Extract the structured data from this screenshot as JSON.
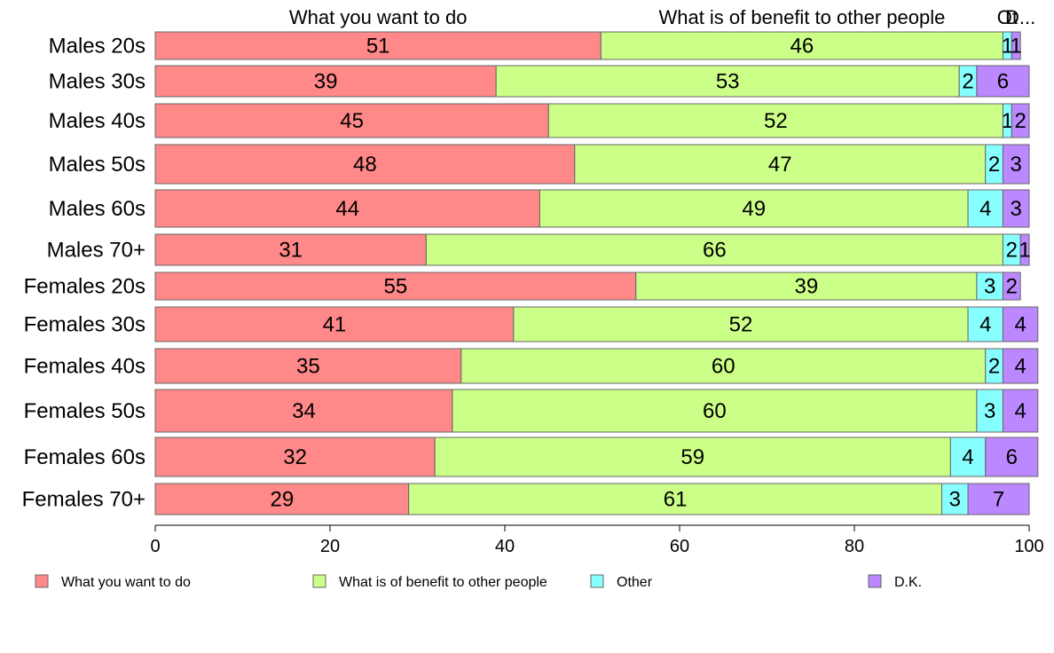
{
  "chart_data": {
    "type": "bar",
    "orientation": "horizontal",
    "stacked": true,
    "categories": [
      "Males 20s",
      "Males 30s",
      "Males 40s",
      "Males 50s",
      "Males 60s",
      "Males 70+",
      "Females 20s",
      "Females 30s",
      "Females 40s",
      "Females 50s",
      "Females 60s",
      "Females 70+"
    ],
    "series": [
      {
        "name": "What you want to do",
        "color": "#FF8888",
        "values": [
          51,
          39,
          45,
          48,
          44,
          31,
          55,
          41,
          35,
          34,
          32,
          29
        ]
      },
      {
        "name": "What is of benefit to other people",
        "color": "#CCFF88",
        "values": [
          46,
          53,
          52,
          47,
          49,
          66,
          39,
          52,
          60,
          60,
          59,
          61
        ]
      },
      {
        "name": "Other",
        "color": "#88FFFF",
        "values": [
          1,
          2,
          1,
          2,
          4,
          2,
          3,
          4,
          2,
          3,
          4,
          3
        ]
      },
      {
        "name": "D.K.",
        "color": "#BB88FF",
        "values": [
          1,
          6,
          2,
          3,
          3,
          1,
          2,
          4,
          4,
          4,
          6,
          7
        ]
      }
    ],
    "top_labels": [
      "What you want to do",
      "What is of benefit to other people",
      "Ot",
      "D..."
    ],
    "xlim": [
      0,
      100
    ],
    "xticks": [
      0,
      20,
      40,
      60,
      80,
      100
    ],
    "xlabel": "",
    "ylabel": "",
    "legend_position": "bottom",
    "grid": false
  }
}
